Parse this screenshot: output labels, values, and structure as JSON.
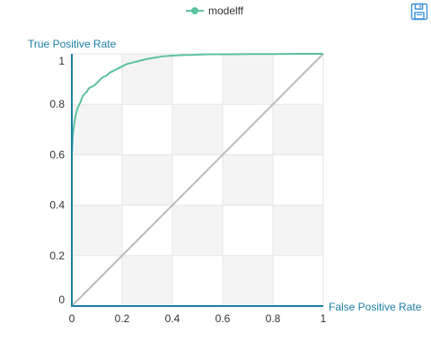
{
  "toolbox": {
    "save_icon": "save-icon",
    "color": "#3a8fd6"
  },
  "legend": {
    "series_name": "modelff",
    "placement": "top-center"
  },
  "colors": {
    "roc": "#5cc29f",
    "diagonal": "#bbbbbb",
    "axis": "#1a7fa8",
    "axis_label": "#1a7fa8",
    "band_dark": "#f4f4f4",
    "band_light": "#ffffff",
    "grid": "#e6e6e6"
  },
  "chart_data": {
    "type": "line",
    "xlabel": "False Positive Rate",
    "ylabel": "True Positive Rate",
    "xlim": [
      0,
      1
    ],
    "ylim": [
      0,
      1
    ],
    "x_ticks": [
      "0",
      "0.2",
      "0.4",
      "0.6",
      "0.8",
      "1"
    ],
    "y_ticks": [
      "0",
      "0.2",
      "0.4",
      "0.6",
      "0.8",
      "1"
    ],
    "grid": true,
    "series": [
      {
        "name": "modelff",
        "x": [
          0,
          0,
          0.004,
          0.008,
          0.012,
          0.016,
          0.02,
          0.025,
          0.03,
          0.035,
          0.04,
          0.045,
          0.05,
          0.055,
          0.06,
          0.065,
          0.07,
          0.08,
          0.09,
          0.1,
          0.11,
          0.12,
          0.13,
          0.14,
          0.15,
          0.16,
          0.17,
          0.18,
          0.19,
          0.2,
          0.21,
          0.22,
          0.24,
          0.26,
          0.28,
          0.3,
          0.33,
          0.36,
          0.4,
          0.44,
          0.48,
          0.5,
          0.55,
          0.6,
          0.7,
          0.8,
          0.9,
          1
        ],
        "y": [
          0,
          0.6,
          0.68,
          0.71,
          0.74,
          0.76,
          0.775,
          0.79,
          0.8,
          0.81,
          0.825,
          0.835,
          0.84,
          0.845,
          0.85,
          0.86,
          0.865,
          0.87,
          0.875,
          0.885,
          0.895,
          0.905,
          0.91,
          0.915,
          0.925,
          0.93,
          0.935,
          0.94,
          0.945,
          0.95,
          0.955,
          0.96,
          0.965,
          0.97,
          0.975,
          0.98,
          0.985,
          0.99,
          0.993,
          0.995,
          0.996,
          0.997,
          0.998,
          0.998,
          0.999,
          0.999,
          1.0,
          1.0
        ]
      },
      {
        "name": "",
        "x": [
          0,
          1
        ],
        "y": [
          0,
          1
        ]
      }
    ]
  }
}
